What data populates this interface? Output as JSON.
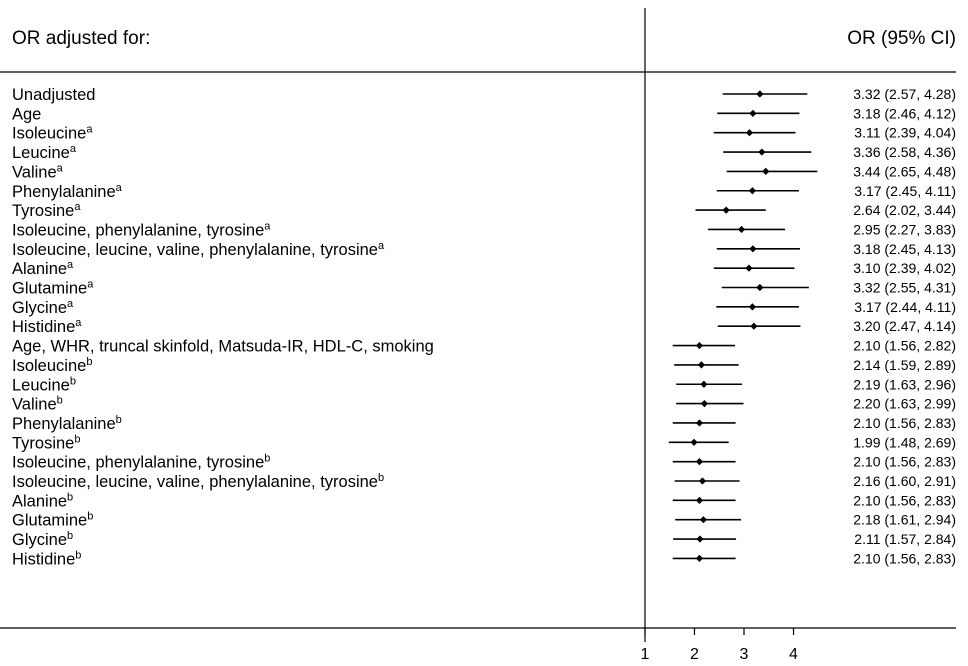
{
  "chart_data": {
    "type": "forest",
    "header_left": "OR adjusted for:",
    "header_right": "OR (95% CI)",
    "x_ticks": [
      "1",
      "2",
      "3",
      "4"
    ],
    "xlim": [
      1,
      6.5
    ],
    "reference_line": 1,
    "rows": [
      {
        "label": "Unadjusted",
        "sup": "",
        "or": 3.32,
        "lo": 2.57,
        "hi": 4.28,
        "ci_text": "3.32 (2.57, 4.28)"
      },
      {
        "label": "Age",
        "sup": "",
        "or": 3.18,
        "lo": 2.46,
        "hi": 4.12,
        "ci_text": "3.18 (2.46, 4.12)"
      },
      {
        "label": "Isoleucine",
        "sup": "a",
        "or": 3.11,
        "lo": 2.39,
        "hi": 4.04,
        "ci_text": "3.11 (2.39, 4.04)"
      },
      {
        "label": "Leucine",
        "sup": "a",
        "or": 3.36,
        "lo": 2.58,
        "hi": 4.36,
        "ci_text": "3.36 (2.58, 4.36)"
      },
      {
        "label": "Valine",
        "sup": "a",
        "or": 3.44,
        "lo": 2.65,
        "hi": 4.48,
        "ci_text": "3.44 (2.65, 4.48)"
      },
      {
        "label": "Phenylalanine",
        "sup": "a",
        "or": 3.17,
        "lo": 2.45,
        "hi": 4.11,
        "ci_text": "3.17 (2.45, 4.11)"
      },
      {
        "label": "Tyrosine",
        "sup": "a",
        "or": 2.64,
        "lo": 2.02,
        "hi": 3.44,
        "ci_text": "2.64 (2.02, 3.44)"
      },
      {
        "label": "Isoleucine, phenylalanine, tyrosine",
        "sup": "a",
        "or": 2.95,
        "lo": 2.27,
        "hi": 3.83,
        "ci_text": "2.95 (2.27, 3.83)"
      },
      {
        "label": "Isoleucine, leucine, valine, phenylalanine, tyrosine",
        "sup": "a",
        "or": 3.18,
        "lo": 2.45,
        "hi": 4.13,
        "ci_text": "3.18 (2.45, 4.13)"
      },
      {
        "label": "Alanine",
        "sup": "a",
        "or": 3.1,
        "lo": 2.39,
        "hi": 4.02,
        "ci_text": "3.10 (2.39, 4.02)"
      },
      {
        "label": "Glutamine",
        "sup": "a",
        "or": 3.32,
        "lo": 2.55,
        "hi": 4.31,
        "ci_text": "3.32 (2.55, 4.31)"
      },
      {
        "label": "Glycine",
        "sup": "a",
        "or": 3.17,
        "lo": 2.44,
        "hi": 4.11,
        "ci_text": "3.17 (2.44, 4.11)"
      },
      {
        "label": "Histidine",
        "sup": "a",
        "or": 3.2,
        "lo": 2.47,
        "hi": 4.14,
        "ci_text": "3.20 (2.47, 4.14)"
      },
      {
        "label": "Age, WHR, truncal skinfold, Matsuda-IR, HDL-C, smoking",
        "sup": "",
        "or": 2.1,
        "lo": 1.56,
        "hi": 2.82,
        "ci_text": "2.10 (1.56, 2.82)"
      },
      {
        "label": "Isoleucine",
        "sup": "b",
        "or": 2.14,
        "lo": 1.59,
        "hi": 2.89,
        "ci_text": "2.14 (1.59, 2.89)"
      },
      {
        "label": "Leucine",
        "sup": "b",
        "or": 2.19,
        "lo": 1.63,
        "hi": 2.96,
        "ci_text": "2.19 (1.63, 2.96)"
      },
      {
        "label": "Valine",
        "sup": "b",
        "or": 2.2,
        "lo": 1.63,
        "hi": 2.99,
        "ci_text": "2.20 (1.63, 2.99)"
      },
      {
        "label": "Phenylalanine",
        "sup": "b",
        "or": 2.1,
        "lo": 1.56,
        "hi": 2.83,
        "ci_text": "2.10 (1.56, 2.83)"
      },
      {
        "label": "Tyrosine",
        "sup": "b",
        "or": 1.99,
        "lo": 1.48,
        "hi": 2.69,
        "ci_text": "1.99 (1.48, 2.69)"
      },
      {
        "label": "Isoleucine, phenylalanine, tyrosine",
        "sup": "b",
        "or": 2.1,
        "lo": 1.56,
        "hi": 2.83,
        "ci_text": "2.10 (1.56, 2.83)"
      },
      {
        "label": "Isoleucine, leucine, valine, phenylalanine, tyrosine",
        "sup": "b",
        "or": 2.16,
        "lo": 1.6,
        "hi": 2.91,
        "ci_text": "2.16 (1.60, 2.91)"
      },
      {
        "label": "Alanine",
        "sup": "b",
        "or": 2.1,
        "lo": 1.56,
        "hi": 2.83,
        "ci_text": "2.10 (1.56, 2.83)"
      },
      {
        "label": "Glutamine",
        "sup": "b",
        "or": 2.18,
        "lo": 1.61,
        "hi": 2.94,
        "ci_text": "2.18 (1.61, 2.94)"
      },
      {
        "label": "Glycine",
        "sup": "b",
        "or": 2.11,
        "lo": 1.57,
        "hi": 2.84,
        "ci_text": "2.11 (1.57, 2.84)"
      },
      {
        "label": "Histidine",
        "sup": "b",
        "or": 2.1,
        "lo": 1.56,
        "hi": 2.83,
        "ci_text": "2.10 (1.56, 2.83)"
      }
    ]
  }
}
